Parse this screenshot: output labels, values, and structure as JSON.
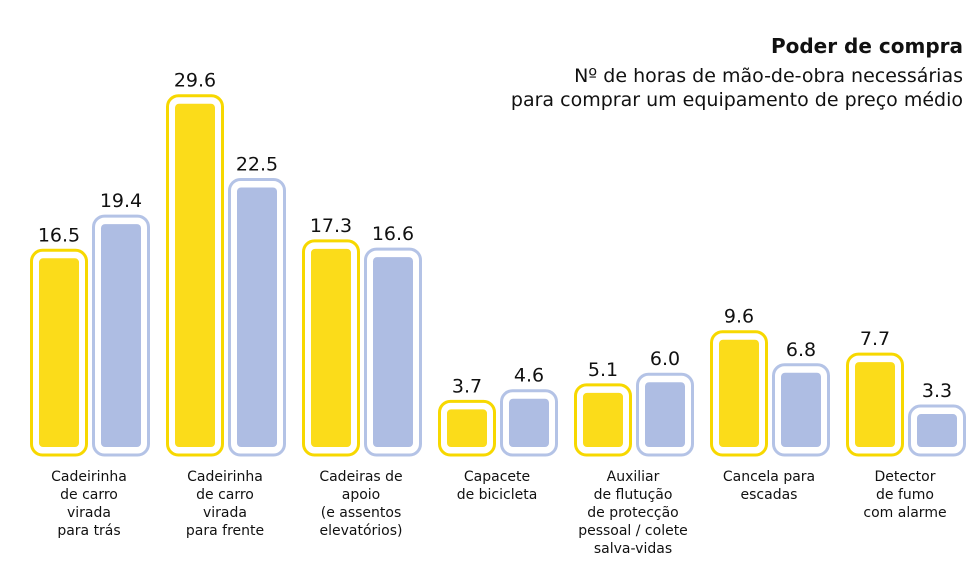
{
  "chart_data": {
    "type": "bar",
    "title": "Poder de compra",
    "subtitle": "Nº de horas de mão-de-obra necessárias\npara comprar um equipamento de preço médio",
    "categories": [
      "Cadeirinha\nde carro\nvirada\npara trás",
      "Cadeirinha\nde carro\nvirada\npara frente",
      "Cadeiras de\napoio\n(e assentos\nelevatórios)",
      "Capacete\nde bicicleta",
      "Auxiliar\nde flutução\nde protecção\npessoal / colete\nsalva-vidas",
      "Cancela para\nescadas",
      "Detector\nde fumo\ncom alarme"
    ],
    "series": [
      {
        "color": "#fbdc1a",
        "values": [
          16.5,
          29.6,
          17.3,
          3.7,
          5.1,
          9.6,
          7.7
        ]
      },
      {
        "color": "#aebde3",
        "values": [
          19.4,
          22.5,
          16.6,
          4.6,
          6.0,
          6.8,
          3.3
        ],
        "value_labels": [
          "19.4",
          "22.5",
          "16.6",
          "4.6",
          "6.0",
          "6.8",
          "3.3"
        ]
      }
    ]
  }
}
